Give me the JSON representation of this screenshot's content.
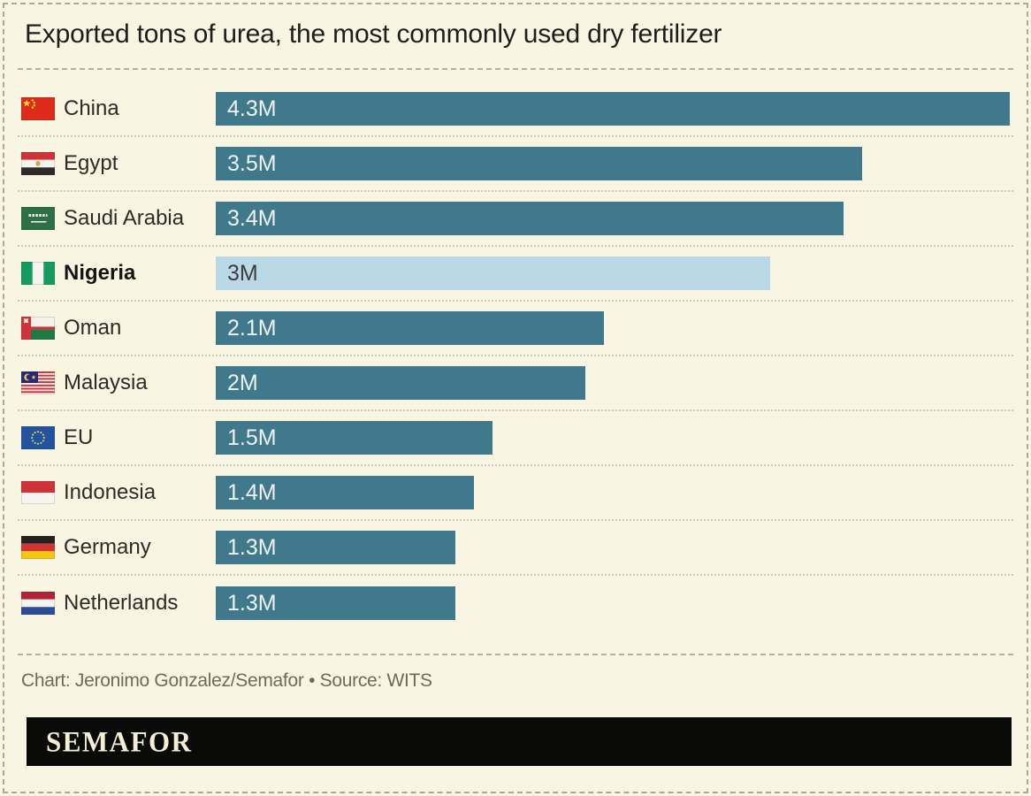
{
  "page": {
    "background_color": "#f9f5e3",
    "border_color": "#aba79b"
  },
  "title": "Exported tons of urea, the most commonly used dry fertilizer",
  "chart_data": {
    "type": "bar",
    "orientation": "horizontal",
    "title": "Exported tons of urea, the most commonly used dry fertilizer",
    "xlim": [
      0,
      4.3
    ],
    "grid": false,
    "legend": false,
    "categories": [
      "China",
      "Egypt",
      "Saudi Arabia",
      "Nigeria",
      "Oman",
      "Malaysia",
      "EU",
      "Indonesia",
      "Germany",
      "Netherlands"
    ],
    "values": [
      4.3,
      3.5,
      3.4,
      3.0,
      2.1,
      2.0,
      1.5,
      1.4,
      1.3,
      1.3
    ],
    "value_labels": [
      "4.3M",
      "3.5M",
      "3.4M",
      "3M",
      "2.1M",
      "2M",
      "1.5M",
      "1.4M",
      "1.3M",
      "1.3M"
    ],
    "highlight_category": "Nigeria",
    "bar_color": "#41798c",
    "highlight_bar_color": "#b9d9e7",
    "value_label_color": "#eef3f5",
    "highlight_value_label_color": "#3d3d3d"
  },
  "rows": [
    {
      "country": "China",
      "flag": "china-flag-icon",
      "flag_id": "cn",
      "value": 4.3,
      "value_label": "4.3M",
      "highlighted": false
    },
    {
      "country": "Egypt",
      "flag": "egypt-flag-icon",
      "flag_id": "eg",
      "value": 3.5,
      "value_label": "3.5M",
      "highlighted": false
    },
    {
      "country": "Saudi Arabia",
      "flag": "saudi-arabia-flag-icon",
      "flag_id": "sa",
      "value": 3.4,
      "value_label": "3.4M",
      "highlighted": false
    },
    {
      "country": "Nigeria",
      "flag": "nigeria-flag-icon",
      "flag_id": "ng",
      "value": 3.0,
      "value_label": "3M",
      "highlighted": true
    },
    {
      "country": "Oman",
      "flag": "oman-flag-icon",
      "flag_id": "om",
      "value": 2.1,
      "value_label": "2.1M",
      "highlighted": false
    },
    {
      "country": "Malaysia",
      "flag": "malaysia-flag-icon",
      "flag_id": "my",
      "value": 2.0,
      "value_label": "2M",
      "highlighted": false
    },
    {
      "country": "EU",
      "flag": "eu-flag-icon",
      "flag_id": "eu",
      "value": 1.5,
      "value_label": "1.5M",
      "highlighted": false
    },
    {
      "country": "Indonesia",
      "flag": "indonesia-flag-icon",
      "flag_id": "id",
      "value": 1.4,
      "value_label": "1.4M",
      "highlighted": false
    },
    {
      "country": "Germany",
      "flag": "germany-flag-icon",
      "flag_id": "de",
      "value": 1.3,
      "value_label": "1.3M",
      "highlighted": false
    },
    {
      "country": "Netherlands",
      "flag": "netherlands-flag-icon",
      "flag_id": "nl",
      "value": 1.3,
      "value_label": "1.3M",
      "highlighted": false
    }
  ],
  "footer": {
    "credit": "Chart: Jeronimo Gonzalez/Semafor • Source: WITS",
    "logo_text": "SEMAFOR"
  }
}
